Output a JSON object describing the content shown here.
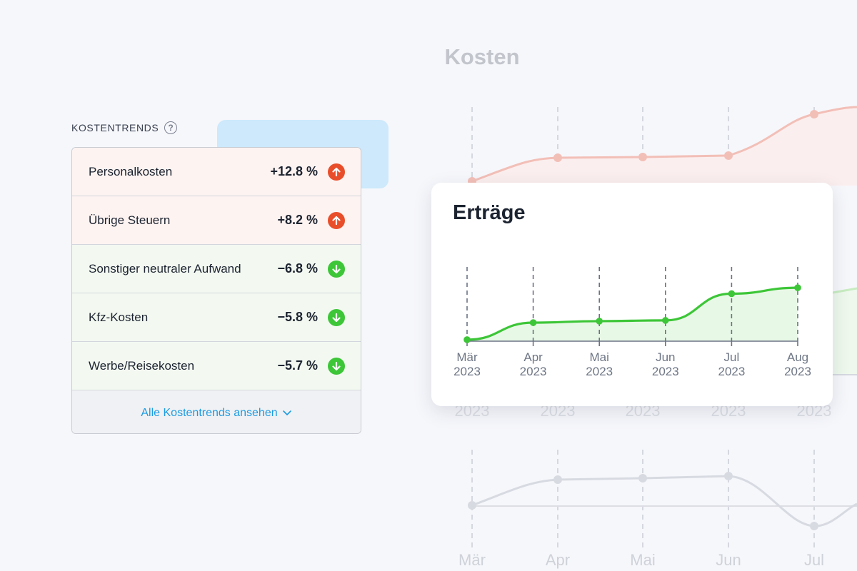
{
  "background": {
    "title": "Kosten",
    "years": [
      "2023",
      "2023",
      "2023",
      "2023",
      "2023"
    ],
    "months": [
      "Mär",
      "Apr",
      "Mai",
      "Jun",
      "Jul"
    ]
  },
  "trends": {
    "header": "KOSTENTRENDS",
    "help_icon": "?",
    "rows": [
      {
        "label": "Personalkosten",
        "value": "+12.8 %",
        "direction": "up"
      },
      {
        "label": "Übrige Steuern",
        "value": "+8.2 %",
        "direction": "up"
      },
      {
        "label": "Sonstiger neutraler Aufwand",
        "value": "−6.8 %",
        "direction": "down"
      },
      {
        "label": "Kfz-Kosten",
        "value": "−5.8 %",
        "direction": "down"
      },
      {
        "label": "Werbe/Reisekosten",
        "value": "−5.7 %",
        "direction": "down"
      }
    ],
    "footer_link": "Alle Kostentrends ansehen",
    "colors": {
      "up": "#e94e2a",
      "down": "#3dc638",
      "link": "#1d9be0"
    }
  },
  "chart_data": {
    "type": "area",
    "title": "Erträge",
    "categories": [
      "Mär\n2023",
      "Apr\n2023",
      "Mai\n2023",
      "Jun\n2023",
      "Jul\n2023",
      "Aug\n2023"
    ],
    "month_labels": [
      "Mär",
      "Apr",
      "Mai",
      "Jun",
      "Jul",
      "Aug"
    ],
    "year_labels": [
      "2023",
      "2023",
      "2023",
      "2023",
      "2023",
      "2023"
    ],
    "values": [
      2,
      25,
      27,
      28,
      64,
      72
    ],
    "ylim": [
      0,
      100
    ],
    "grid": "vertical dashed",
    "color": "#3dc638"
  }
}
